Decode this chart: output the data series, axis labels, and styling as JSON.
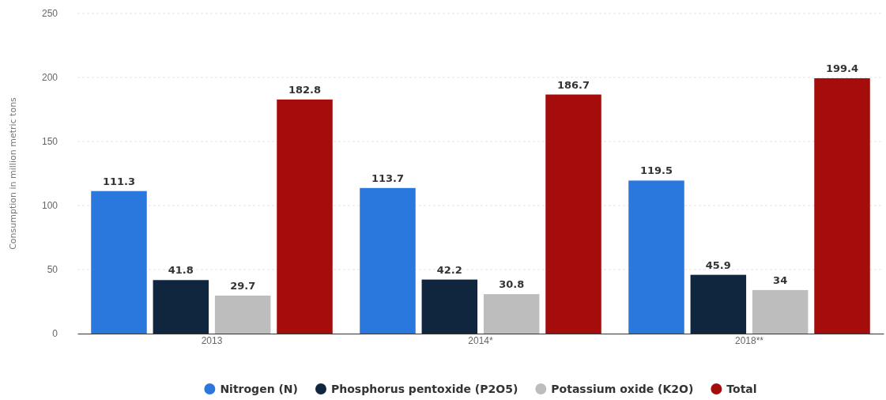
{
  "chart_data": {
    "type": "bar",
    "ylabel": "Consumption in million metric tons",
    "categories": [
      "2013",
      "2014*",
      "2018**"
    ],
    "series": [
      {
        "name": "Nitrogen (N)",
        "color": "#2a78de",
        "values": [
          111.3,
          113.7,
          119.5
        ]
      },
      {
        "name": "Phosphorus pentoxide (P2O5)",
        "color": "#10263f",
        "values": [
          41.8,
          42.2,
          45.9
        ]
      },
      {
        "name": "Potassium oxide (K2O)",
        "color": "#bdbdbd",
        "values": [
          29.7,
          30.8,
          34
        ]
      },
      {
        "name": "Total",
        "color": "#a50c0c",
        "values": [
          182.8,
          186.7,
          199.4
        ]
      }
    ],
    "ylim": [
      0,
      250
    ],
    "yticks": [
      0,
      50,
      100,
      150,
      200,
      250
    ],
    "grid": "y",
    "legend": "bottom",
    "data_labels": true
  }
}
